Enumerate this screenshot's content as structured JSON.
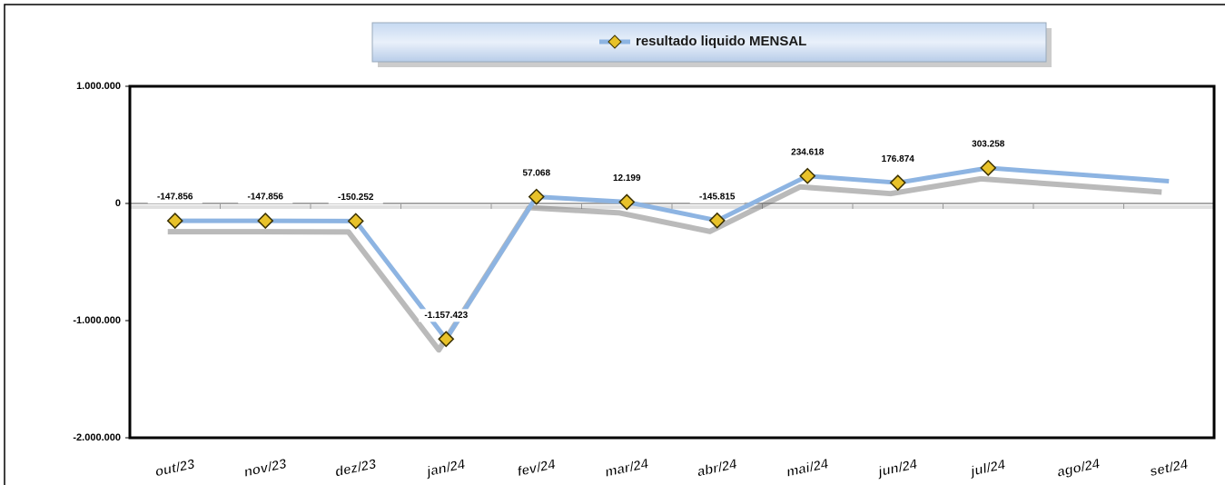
{
  "chart_data": {
    "type": "line",
    "categories": [
      "out/23",
      "nov/23",
      "dez/23",
      "jan/24",
      "fev/24",
      "mar/24",
      "abr/24",
      "mai/24",
      "jun/24",
      "jul/24",
      "ago/24",
      "set/24"
    ],
    "series": [
      {
        "name": "resultado liquido MENSAL",
        "color": "#8db4e2",
        "marker_color": "#e8c22a",
        "values": [
          -147856,
          -147856,
          -150252,
          -1157423,
          57068,
          12199,
          -145815,
          234618,
          176874,
          303258,
          247000,
          190000
        ],
        "value_labels": [
          "-147.856",
          "-147.856",
          "-150.252",
          "-1.157.423",
          "57.068",
          "12.199",
          "-145.815",
          "234.618",
          "176.874",
          "303.258",
          null,
          null
        ]
      }
    ],
    "ylim": [
      -2000000,
      1000000
    ],
    "yticks": [
      {
        "value": 1000000,
        "label": "1.000.000"
      },
      0,
      {
        "value": -1000000,
        "label": "-1.000.000"
      },
      {
        "value": -2000000,
        "label": "-2.000.000"
      }
    ],
    "legend": "top"
  }
}
